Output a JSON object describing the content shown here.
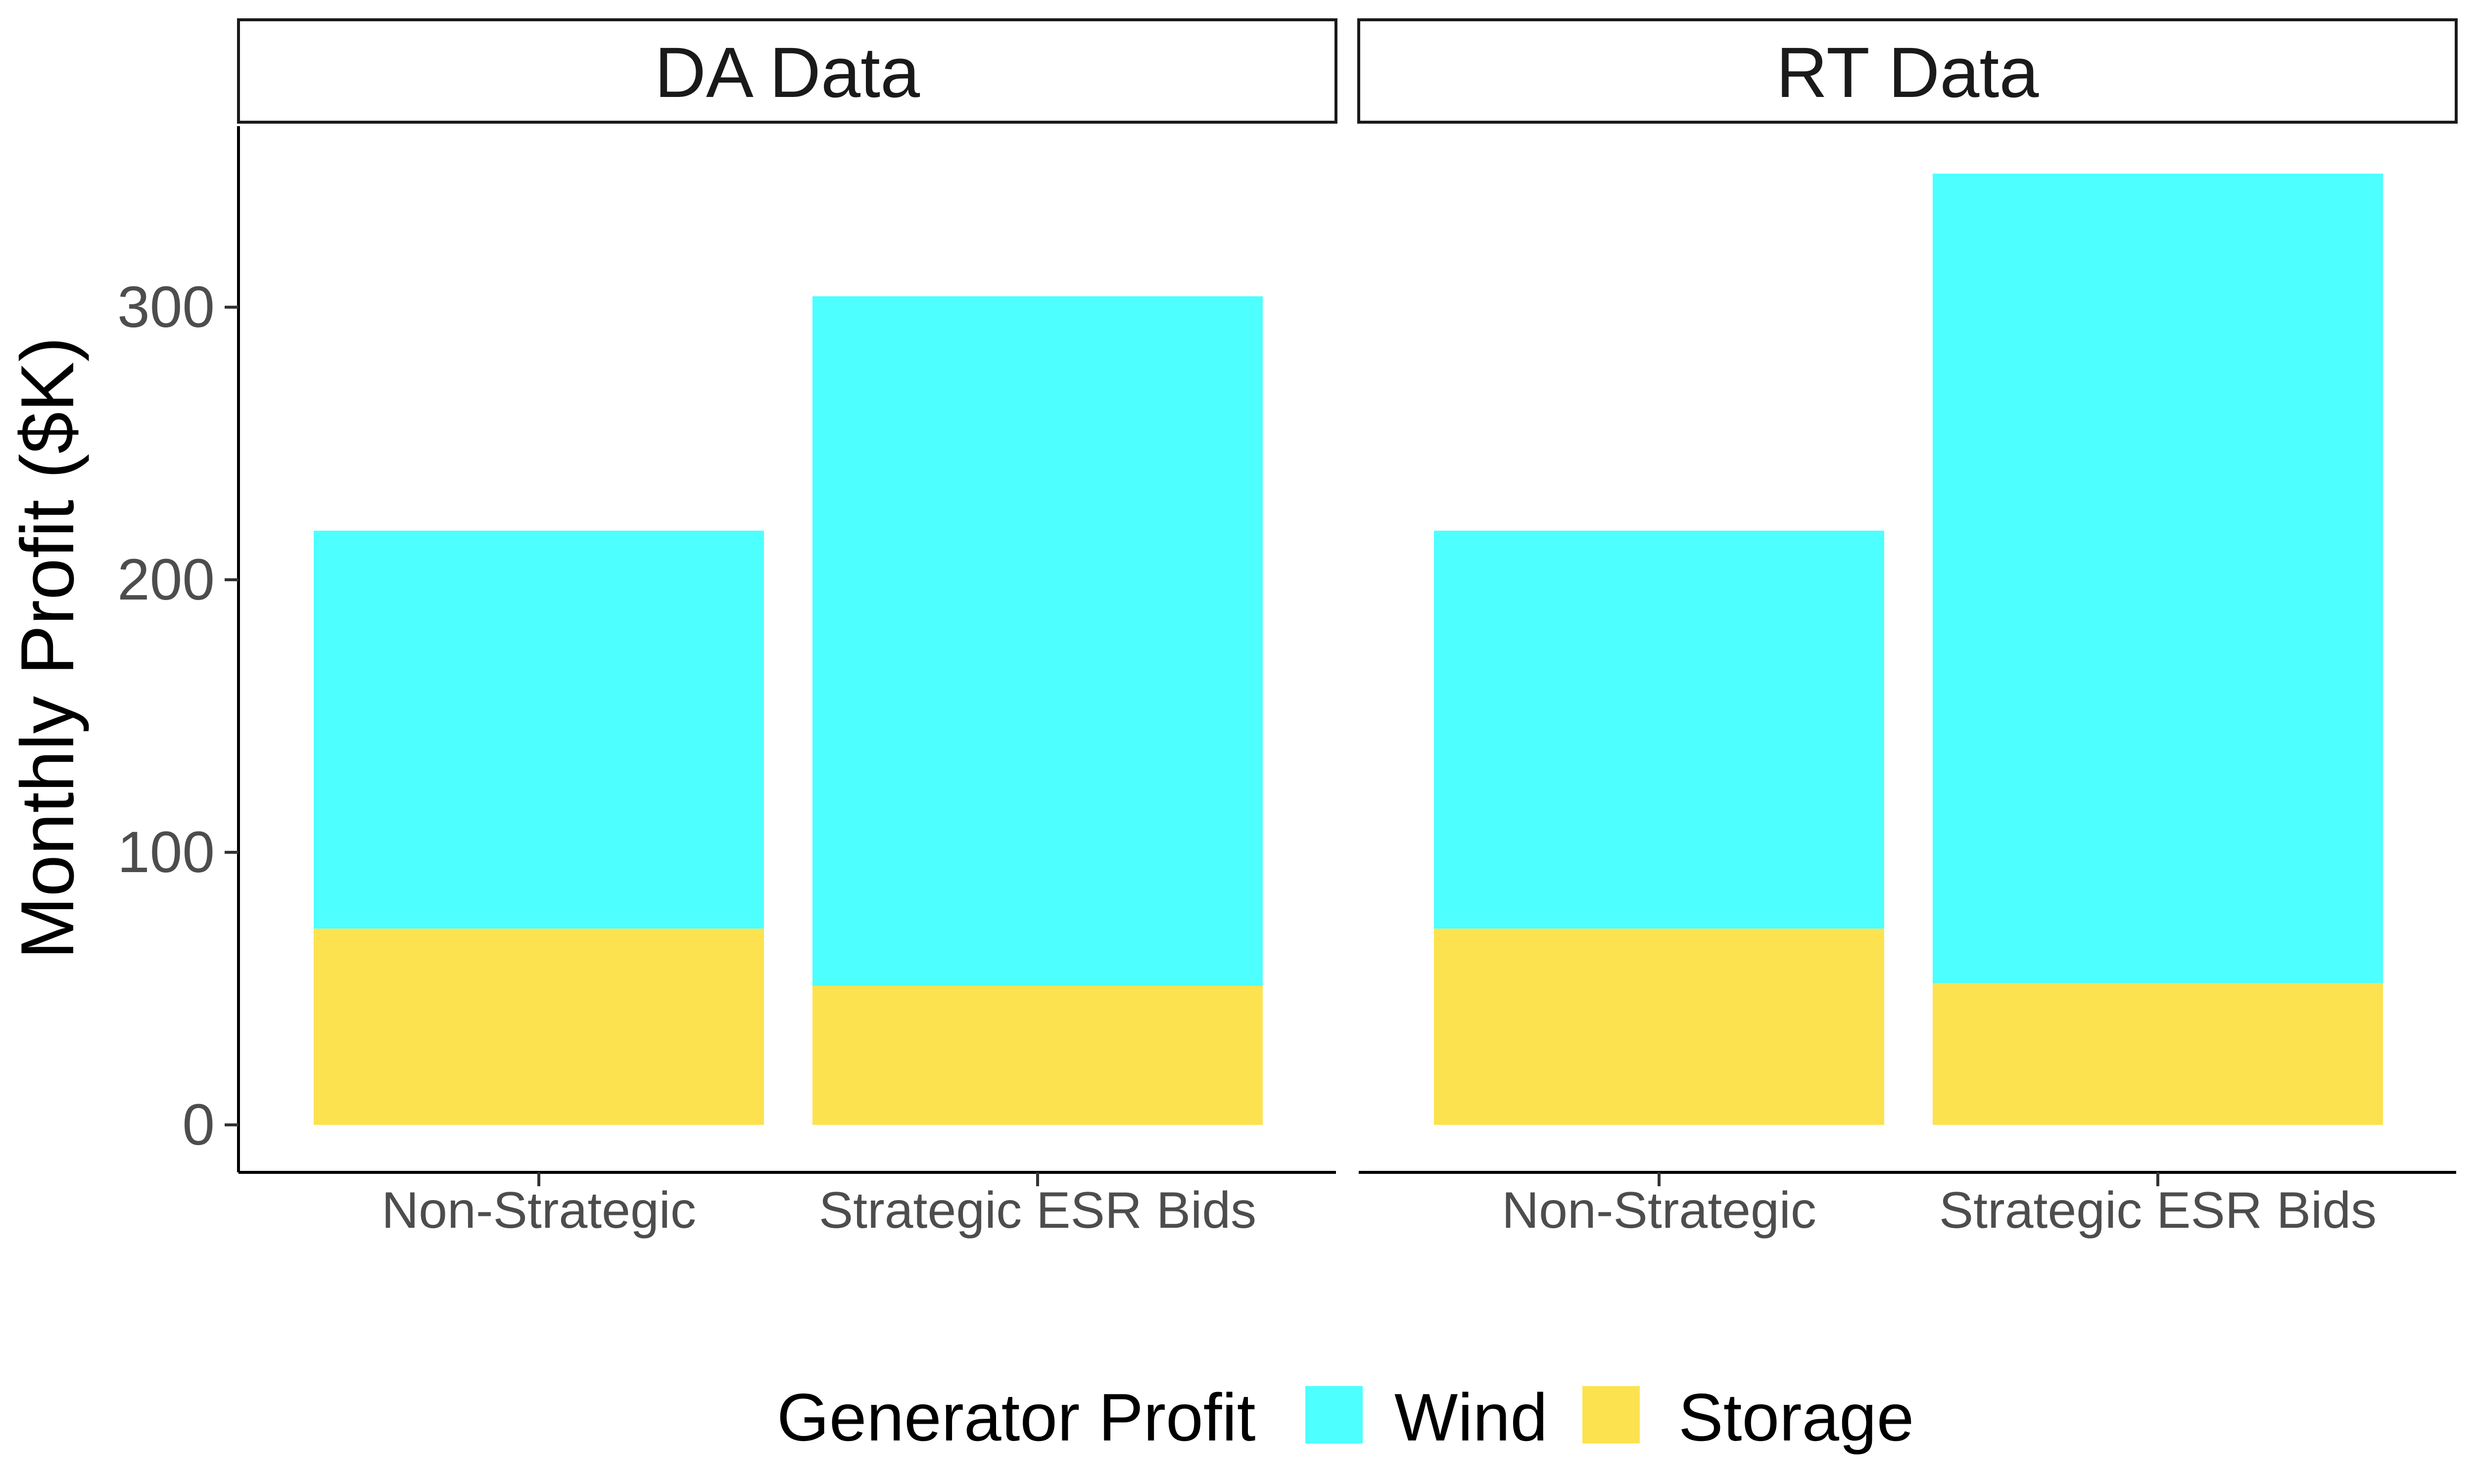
{
  "chart_data": {
    "type": "bar",
    "stacked": true,
    "ylabel": "Monthly Profit ($K)",
    "xlabel": "",
    "ylim": [
      0,
      365
    ],
    "y_ticks": [
      0,
      100,
      200,
      300
    ],
    "grid": false,
    "legend": {
      "title": "Generator Profit",
      "position": "bottom",
      "entries": [
        "Wind",
        "Storage"
      ]
    },
    "categories": [
      "Non-Strategic",
      "Strategic ESR Bids"
    ],
    "panels": [
      {
        "title": "DA Data",
        "series": [
          {
            "name": "Storage",
            "values": [
              72,
              51
            ]
          },
          {
            "name": "Wind",
            "values": [
              146,
              253
            ]
          }
        ]
      },
      {
        "title": "RT Data",
        "series": [
          {
            "name": "Storage",
            "values": [
              72,
              52
            ]
          },
          {
            "name": "Wind",
            "values": [
              146,
              297
            ]
          }
        ]
      }
    ],
    "colors": {
      "Wind": "#4dffff",
      "Storage": "#fde24f"
    }
  }
}
